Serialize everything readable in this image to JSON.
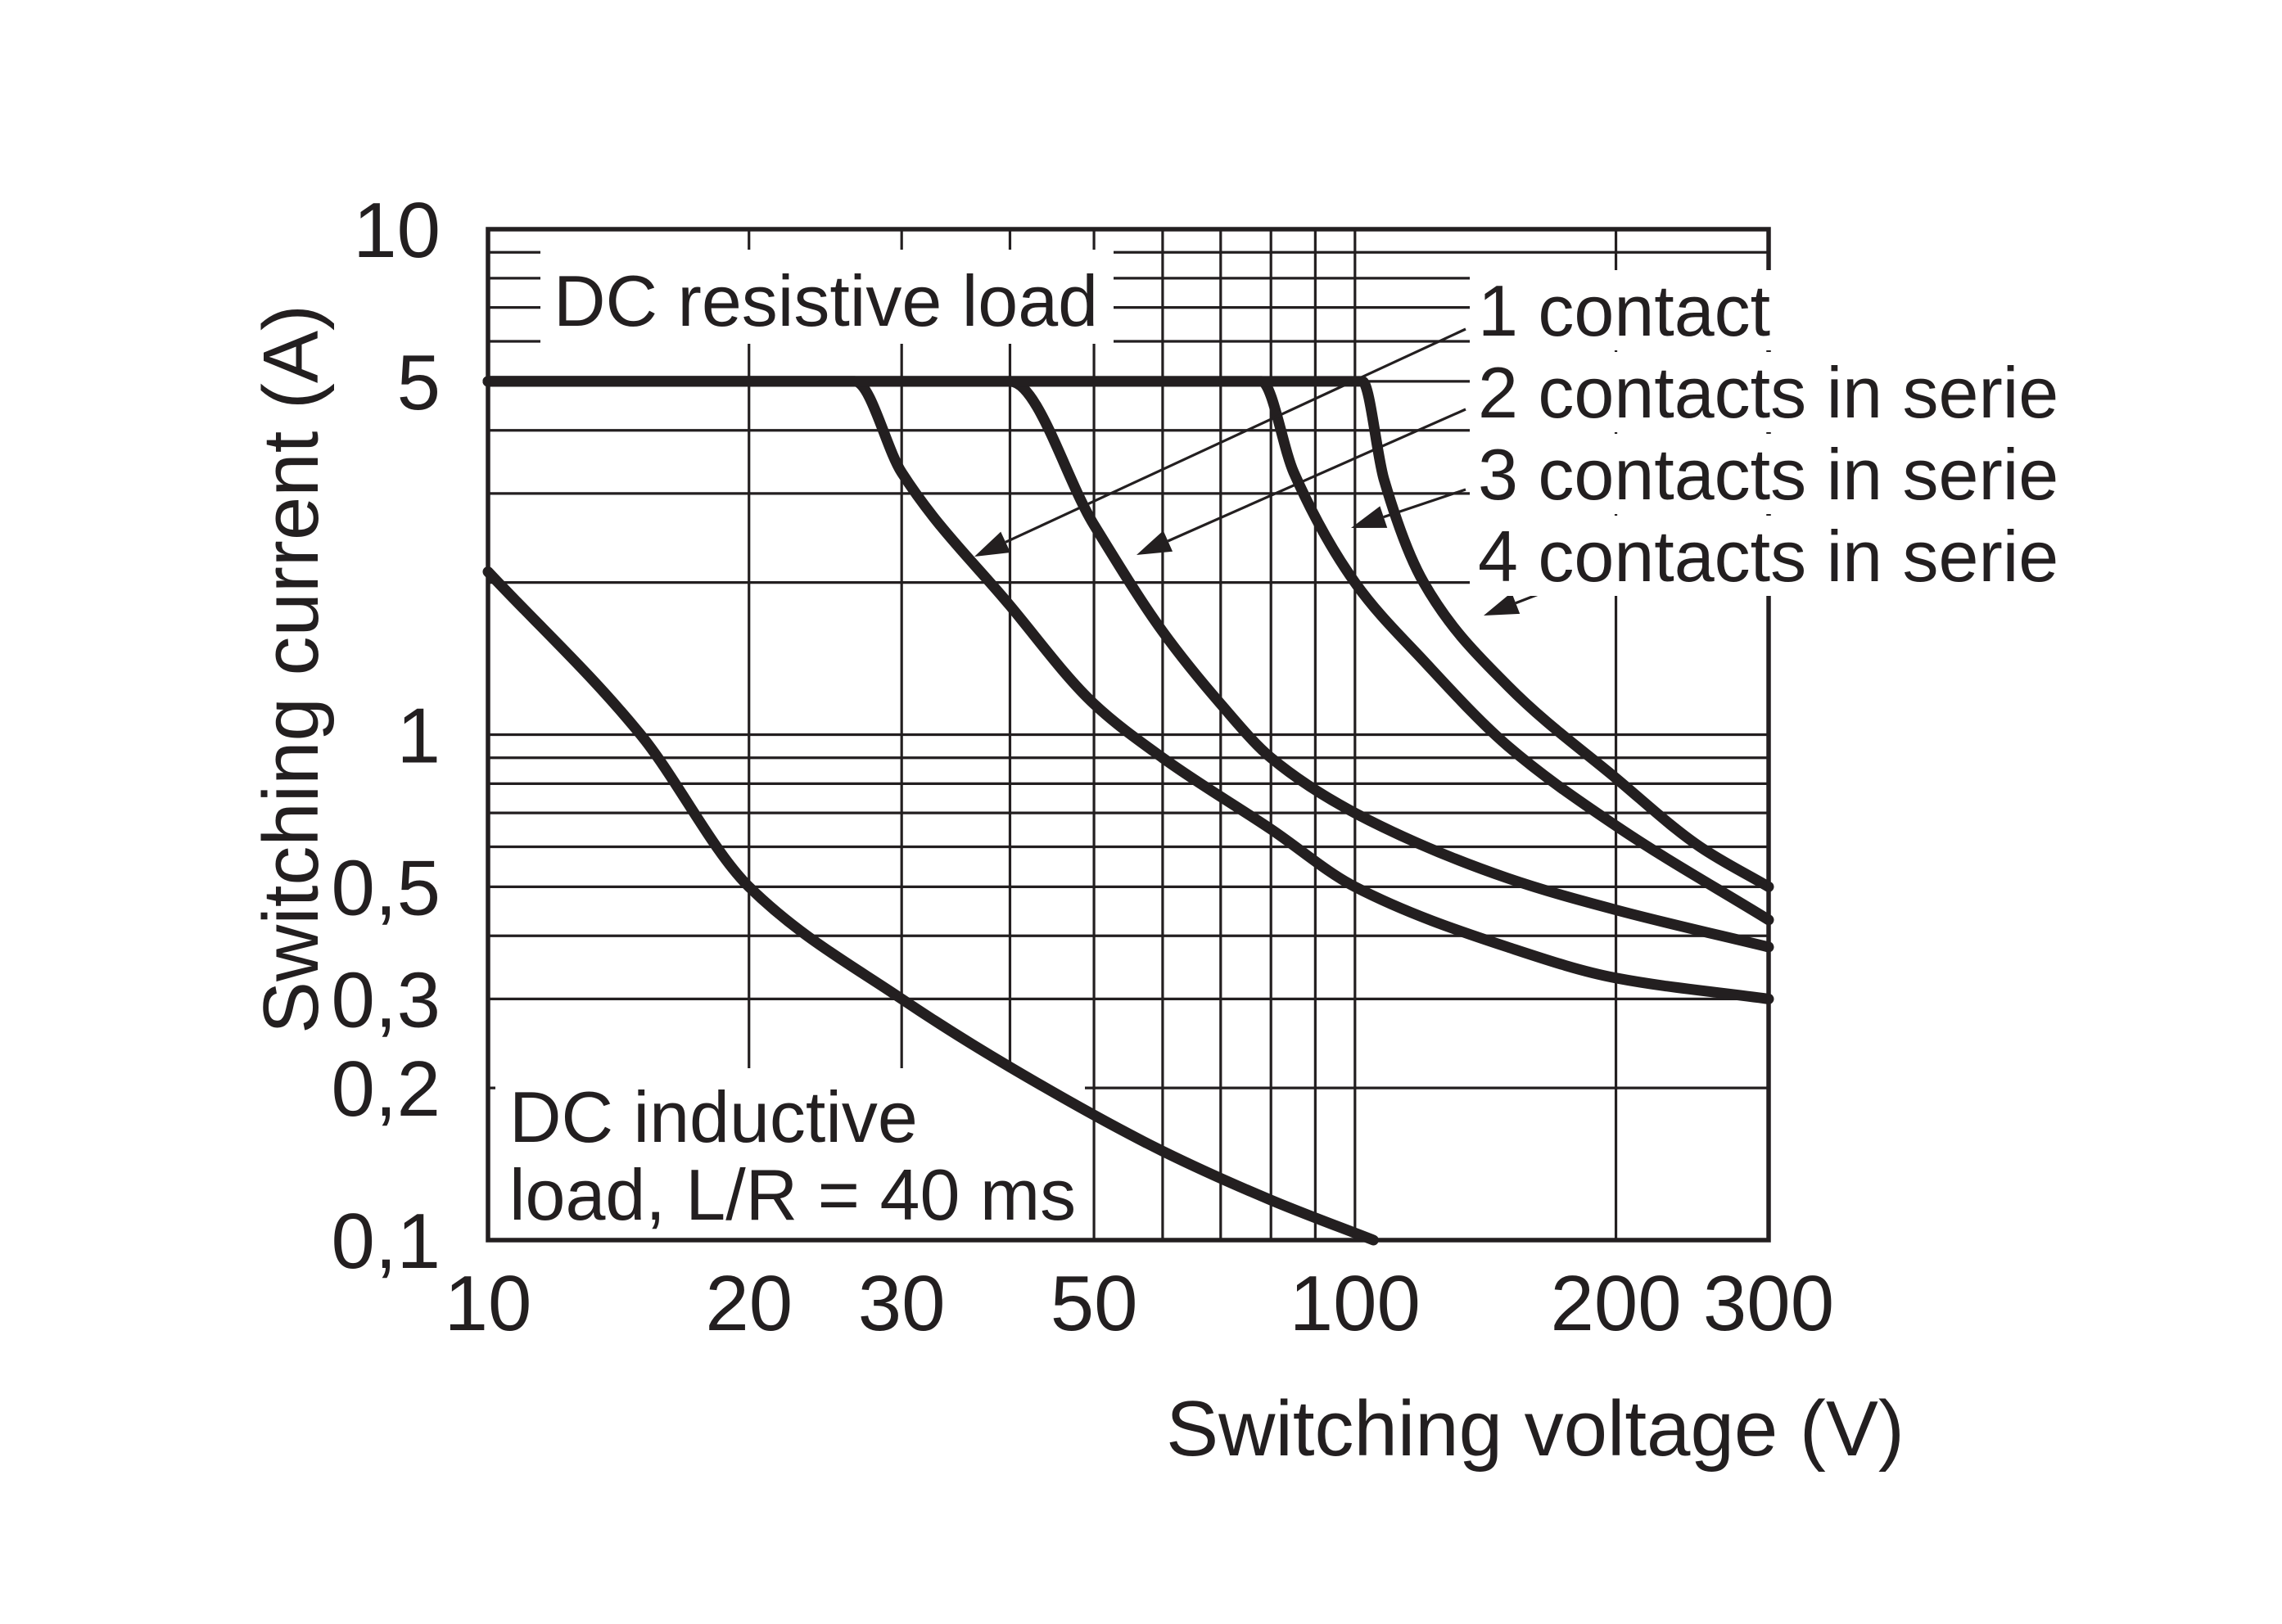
{
  "chart_data": {
    "type": "line",
    "x_scale": "log",
    "y_scale": "log",
    "xlim": [
      10,
      300
    ],
    "ylim": [
      0.1,
      10
    ],
    "xlabel": "Switching voltage (V)",
    "ylabel": "Switching current (A)",
    "x_ticks": [
      {
        "value": 10,
        "label": "10"
      },
      {
        "value": 20,
        "label": "20"
      },
      {
        "value": 30,
        "label": "30"
      },
      {
        "value": 50,
        "label": "50"
      },
      {
        "value": 100,
        "label": "100"
      },
      {
        "value": 200,
        "label": "200"
      },
      {
        "value": 300,
        "label": "300"
      }
    ],
    "y_ticks": [
      {
        "value": 10,
        "label": "10"
      },
      {
        "value": 5,
        "label": "5"
      },
      {
        "value": 1,
        "label": "1"
      },
      {
        "value": 0.5,
        "label": "0,5"
      },
      {
        "value": 0.3,
        "label": "0,3"
      },
      {
        "value": 0.2,
        "label": "0,2"
      },
      {
        "value": 0.1,
        "label": "0,1"
      }
    ],
    "x_grid": [
      20,
      30,
      40,
      50,
      60,
      70,
      80,
      90,
      100,
      200,
      300
    ],
    "y_grid": [
      0.2,
      0.3,
      0.4,
      0.5,
      0.6,
      0.7,
      0.8,
      0.9,
      1,
      2,
      3,
      4,
      5,
      6,
      7,
      8,
      9,
      10
    ],
    "grid": true,
    "annotations": {
      "resistive": "DC resistive load",
      "inductive_line1": "DC inductive",
      "inductive_line2": "load, L/R = 40 ms"
    },
    "series": [
      {
        "name": "1 contact",
        "x": [
          10,
          26.5,
          30,
          40,
          50,
          60,
          80,
          100,
          150,
          200,
          300
        ],
        "y": [
          5,
          5,
          3.3,
          1.8,
          1.15,
          0.9,
          0.65,
          0.5,
          0.38,
          0.33,
          0.3
        ]
      },
      {
        "name": "2 contacts in serie",
        "x": [
          10,
          40,
          50,
          60,
          70,
          80,
          100,
          150,
          200,
          300
        ],
        "y": [
          5,
          5,
          2.6,
          1.6,
          1.15,
          0.9,
          0.7,
          0.52,
          0.45,
          0.38
        ]
      },
      {
        "name": "3 contacts in serie",
        "x": [
          10,
          78,
          85,
          100,
          120,
          150,
          200,
          300
        ],
        "y": [
          5,
          5,
          3.3,
          2.0,
          1.4,
          0.95,
          0.66,
          0.43
        ]
      },
      {
        "name": "4 contacts in serie",
        "x": [
          10,
          102,
          108,
          120,
          150,
          200,
          250,
          300
        ],
        "y": [
          5,
          5,
          3.2,
          2.0,
          1.25,
          0.82,
          0.6,
          0.5
        ]
      },
      {
        "name": "DC inductive load, L/R = 40 ms",
        "x": [
          10,
          15,
          20,
          30,
          40,
          60,
          80,
          105
        ],
        "y": [
          2.1,
          1.0,
          0.5,
          0.3,
          0.22,
          0.15,
          0.12,
          0.1
        ]
      }
    ]
  }
}
